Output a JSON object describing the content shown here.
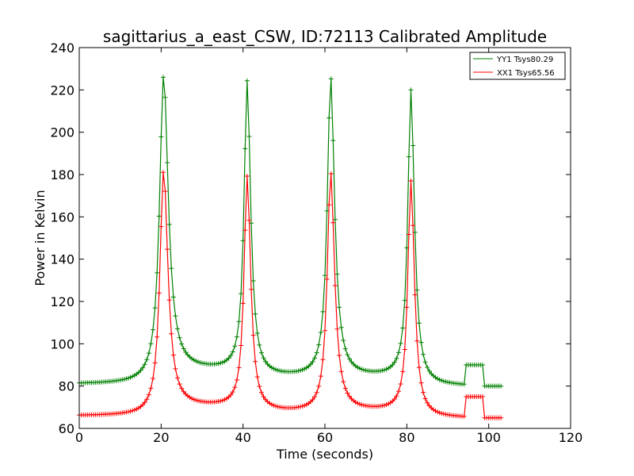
{
  "chart_data": {
    "type": "line",
    "title": "sagittarius_a_east_CSW, ID:72113 Calibrated Amplitude",
    "xlabel": "Time (seconds)",
    "ylabel": "Power in Kelvin",
    "xlim": [
      0,
      120
    ],
    "ylim": [
      60,
      240
    ],
    "xticks": [
      0,
      20,
      40,
      60,
      80,
      100,
      120
    ],
    "yticks": [
      60,
      80,
      100,
      120,
      140,
      160,
      180,
      200,
      220,
      240
    ],
    "grid": false,
    "legend_position": "top-right",
    "marker": "+",
    "series": [
      {
        "name": "YY1 Tsys80.29",
        "color": "#008000",
        "base": 81,
        "peaks": [
          {
            "center": 20.6,
            "height": 227,
            "width": 1.2,
            "floor_after": 87
          },
          {
            "center": 41.0,
            "height": 224,
            "width": 0.9,
            "floor_after": 84
          },
          {
            "center": 61.4,
            "height": 226,
            "width": 1.0,
            "floor_after": 84
          },
          {
            "center": 81.0,
            "height": 220,
            "width": 0.9,
            "floor_after": 80
          }
        ],
        "cal_on": {
          "start": 94.5,
          "end": 98.5,
          "level": 90
        },
        "cal_off_level": 80,
        "end_time": 103
      },
      {
        "name": "XX1 Tsys65.56",
        "color": "#ff0000",
        "base": 66,
        "peaks": [
          {
            "center": 20.6,
            "height": 182,
            "width": 1.1,
            "floor_after": 70
          },
          {
            "center": 41.0,
            "height": 179,
            "width": 0.9,
            "floor_after": 67.5
          },
          {
            "center": 61.4,
            "height": 181,
            "width": 1.0,
            "floor_after": 68
          },
          {
            "center": 81.0,
            "height": 177,
            "width": 0.9,
            "floor_after": 65
          }
        ],
        "cal_on": {
          "start": 94.5,
          "end": 98.5,
          "level": 75
        },
        "cal_off_level": 65,
        "end_time": 103
      }
    ]
  }
}
